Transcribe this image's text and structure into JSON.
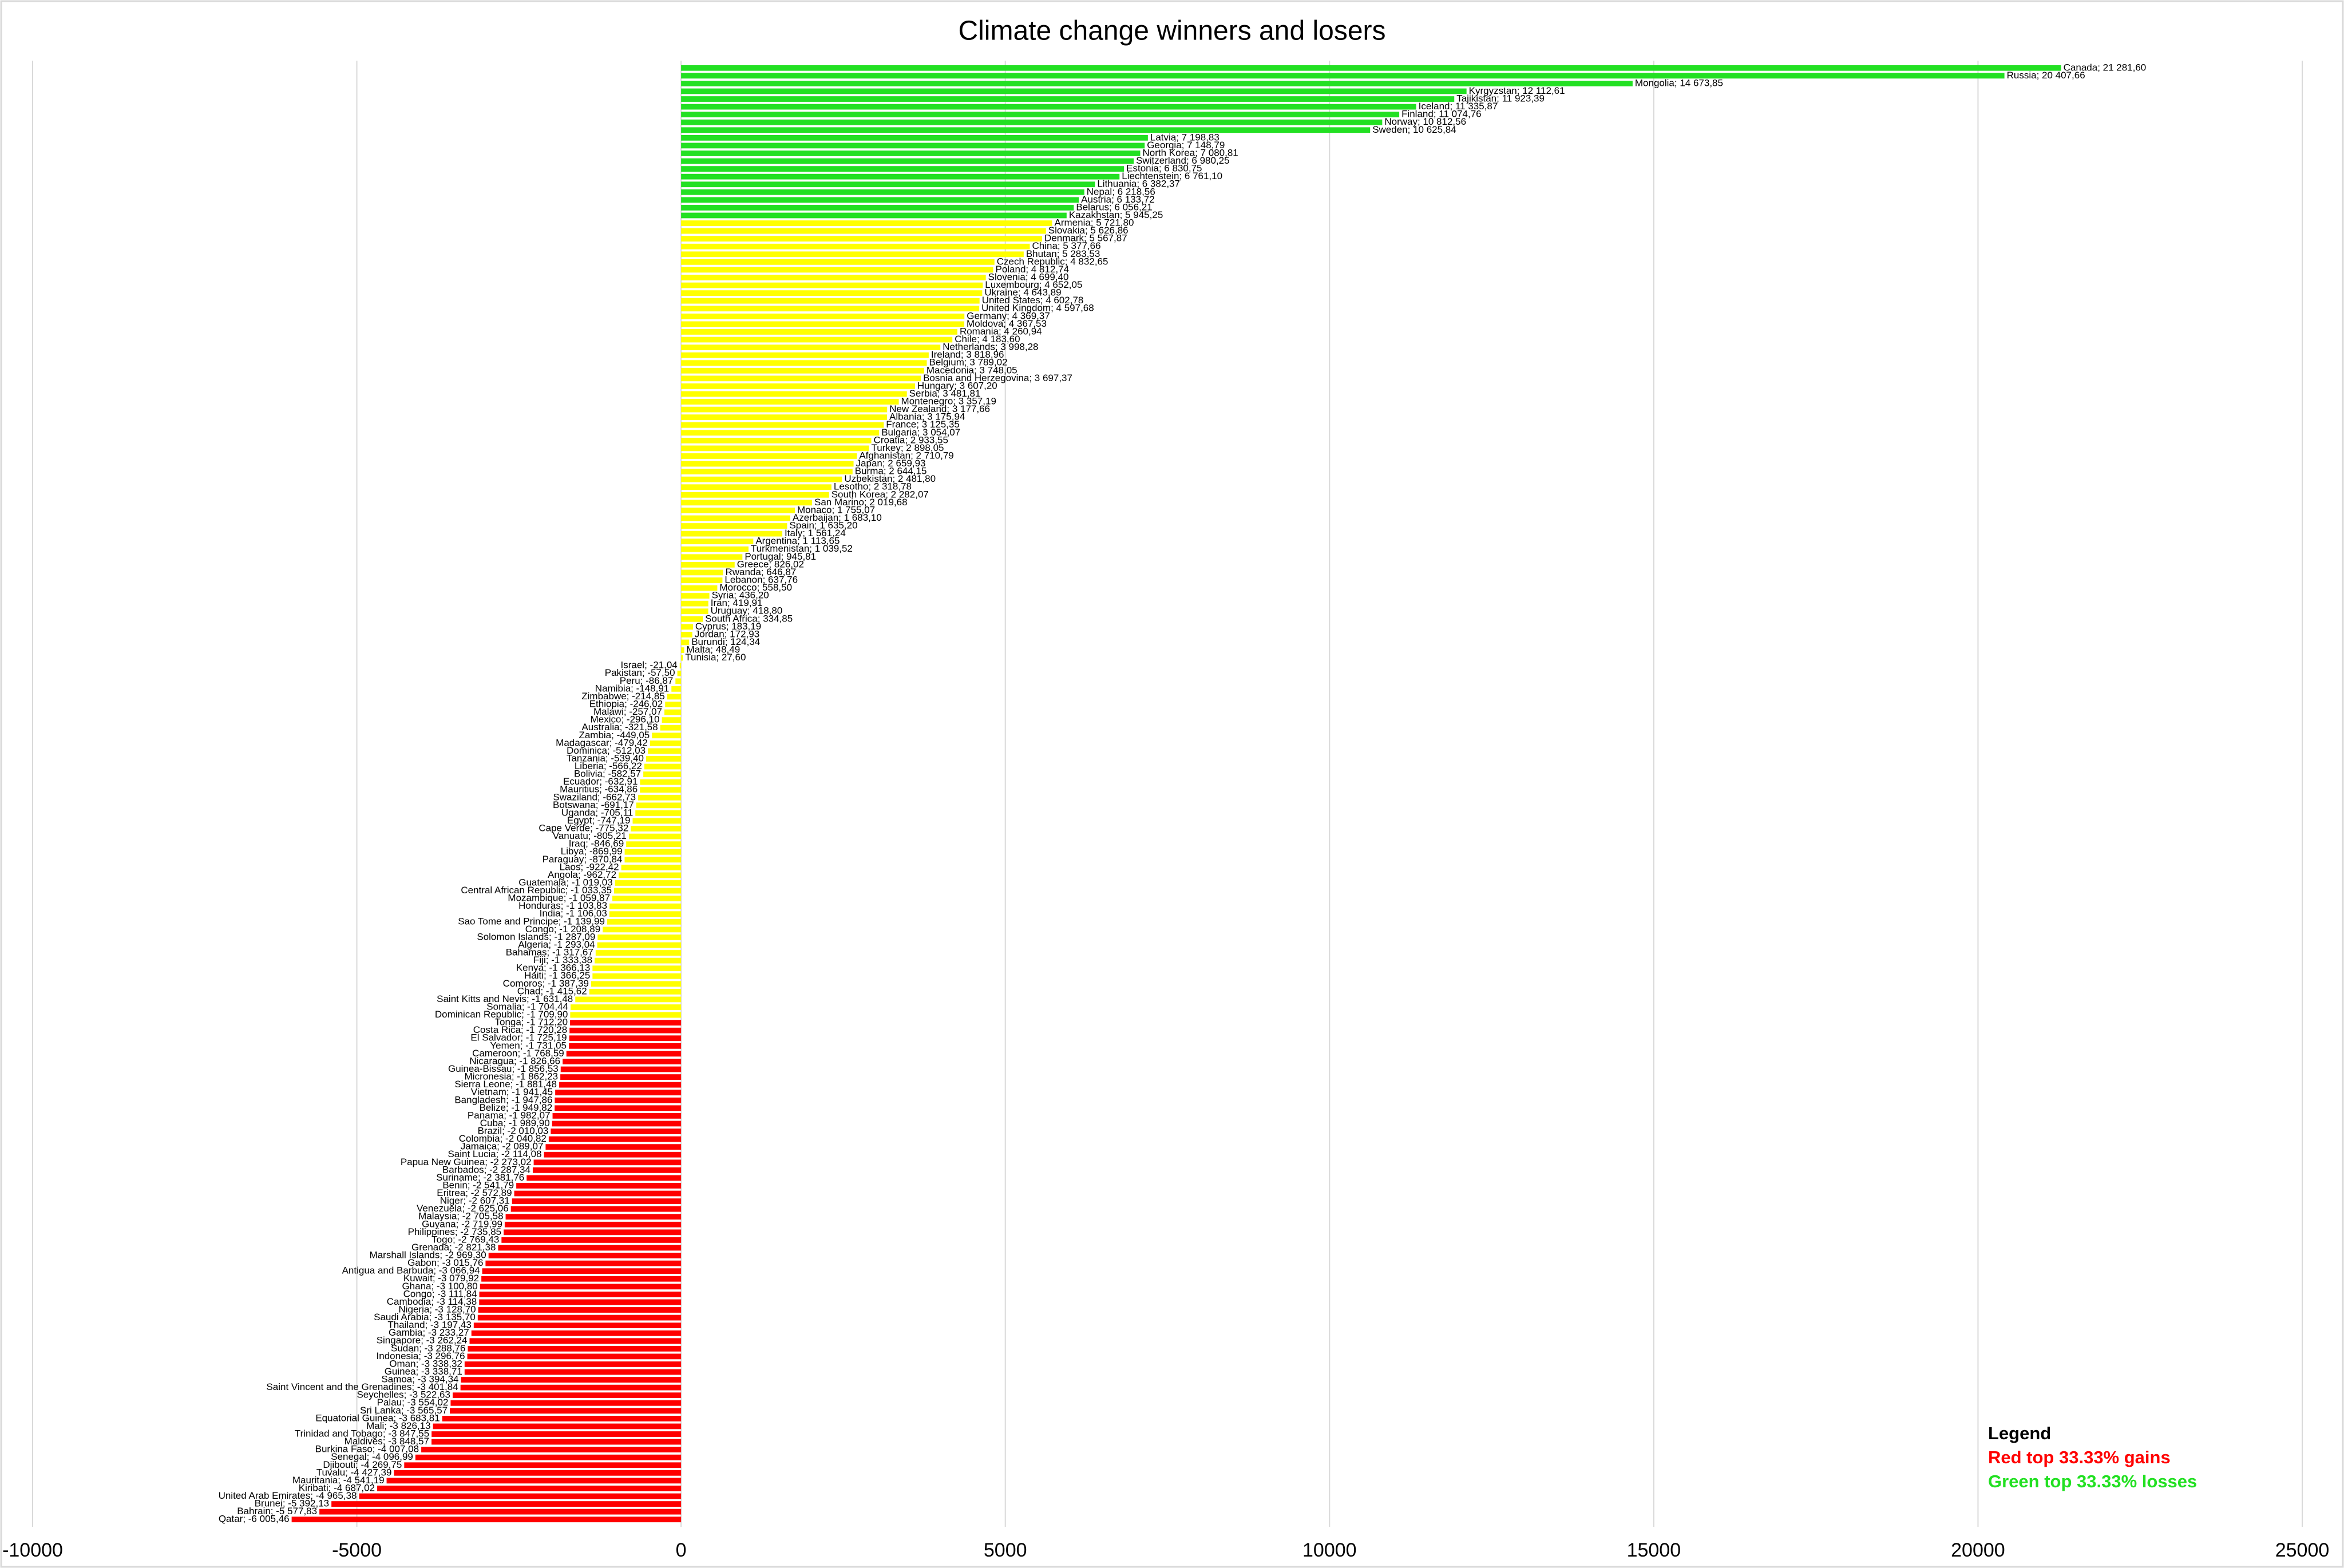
{
  "chart_data": {
    "type": "hbar",
    "title": "Climate change winners and losers",
    "xlim": [
      -10000,
      25000
    ],
    "xticks": [
      -10000,
      -5000,
      0,
      5000,
      10000,
      15000,
      20000,
      25000
    ],
    "grid": true,
    "legend": {
      "title": "Legend",
      "position": "bottom-right",
      "entries": [
        {
          "label": "Red top 33.33% gains",
          "color": "#ff0000"
        },
        {
          "label": "Green top 33.33% losses",
          "color": "#22e022"
        }
      ]
    },
    "series": [
      {
        "color": "#22e022",
        "values": [
          21281.6,
          20407.66,
          14673.85,
          12112.61,
          11923.39,
          11335.87,
          11074.76,
          10812.56,
          10625.84,
          7198.83,
          7148.79,
          7080.81,
          6980.25,
          6830.75,
          6761.1,
          6382.37,
          6218.56,
          6133.72,
          6056.21,
          5945.25
        ],
        "value_labels": [
          "Canada; 21 281,60",
          "Russia; 20 407,66",
          "Mongolia; 14 673,85",
          "Kyrgyzstan; 12 112,61",
          "Tajikistan; 11 923,39",
          "Iceland; 11 335,87",
          "Finland; 11 074,76",
          "Norway; 10 812,56",
          "Sweden; 10 625,84",
          "Latvia; 7 198,83",
          "Georgia; 7 148,79",
          "North Korea; 7 080,81",
          "Switzerland; 6 980,25",
          "Estonia; 6 830,75",
          "Liechtenstein; 6 761,10",
          "Lithuania; 6 382,37",
          "Nepal; 6 218,56",
          "Austria; 6 133,72",
          "Belarus; 6 056,21",
          "Kazakhstan; 5 945,25"
        ]
      },
      {
        "color": "#ffff00",
        "values": [
          5721.8,
          5626.86,
          5567.87,
          5377.66,
          5283.53,
          4832.65,
          4812.74,
          4699.4,
          4652.05,
          4643.89,
          4602.78,
          4597.68,
          4369.37,
          4367.53,
          4260.94,
          4183.6,
          3998.28,
          3818.96,
          3789.02,
          3748.05,
          3697.37,
          3607.2,
          3481.81,
          3357.19,
          3177.66,
          3175.94,
          3125.35,
          3054.07,
          2933.55,
          2898.05,
          2710.79,
          2659.93,
          2644.15,
          2481.8,
          2318.78,
          2282.07,
          2019.68,
          1755.07,
          1683.1,
          1635.2,
          1561.24,
          1113.65,
          1039.52,
          945.81,
          826.02,
          646.87,
          637.76,
          558.5,
          436.2,
          419.91,
          418.8,
          334.85,
          183.19,
          172.93,
          124.34,
          48.49,
          27.6,
          -21.04,
          -57.5,
          -86.87,
          -148.91,
          -214.85,
          -246.02,
          -257.07,
          -296.1,
          -321.58,
          -449.05,
          -479.42,
          -512.03,
          -539.4,
          -566.22,
          -582.57,
          -632.91,
          -634.86,
          -662.73,
          -691.17,
          -705.11,
          -747.19,
          -775.32,
          -805.21,
          -846.69,
          -869.99,
          -870.84,
          -922.42,
          -962.72,
          -1019.03,
          -1033.35,
          -1059.87,
          -1103.83,
          -1106.03,
          -1139.99,
          -1208.89,
          -1287.09,
          -1293.04,
          -1317.67,
          -1333.38,
          -1366.13,
          -1366.25,
          -1387.39,
          -1415.62,
          -1631.48,
          -1704.44,
          -1709.9
        ],
        "value_labels": [
          "Armenia; 5 721,80",
          "Slovakia; 5 626,86",
          "Denmark; 5 567,87",
          "China; 5 377,66",
          "Bhutan; 5 283,53",
          "Czech Republic; 4 832,65",
          "Poland; 4 812,74",
          "Slovenia; 4 699,40",
          "Luxembourg; 4 652,05",
          "Ukraine; 4 643,89",
          "United States; 4 602,78",
          "United Kingdom; 4 597,68",
          "Germany; 4 369,37",
          "Moldova; 4 367,53",
          "Romania; 4 260,94",
          "Chile; 4 183,60",
          "Netherlands; 3 998,28",
          "Ireland; 3 818,96",
          "Belgium; 3 789,02",
          "Macedonia; 3 748,05",
          "Bosnia and Herzegovina; 3 697,37",
          "Hungary; 3 607,20",
          "Serbia; 3 481,81",
          "Montenegro; 3 357,19",
          "New Zealand; 3 177,66",
          "Albania; 3 175,94",
          "France; 3 125,35",
          "Bulgaria; 3 054,07",
          "Croatia; 2 933,55",
          "Turkey; 2 898,05",
          "Afghanistan; 2 710,79",
          "Japan; 2 659,93",
          "Burma; 2 644,15",
          "Uzbekistan; 2 481,80",
          "Lesotho; 2 318,78",
          "South Korea; 2 282,07",
          "San Marino; 2 019,68",
          "Monaco; 1 755,07",
          "Azerbaijan; 1 683,10",
          "Spain; 1 635,20",
          "Italy; 1 561,24",
          "Argentina; 1 113,65",
          "Turkmenistan; 1 039,52",
          "Portugal; 945,81",
          "Greece; 826,02",
          "Rwanda; 646,87",
          "Lebanon; 637,76",
          "Morocco; 558,50",
          "Syria; 436,20",
          "Iran; 419,91",
          "Uruguay; 418,80",
          "South Africa; 334,85",
          "Cyprus; 183,19",
          "Jordan; 172,93",
          "Burundi; 124,34",
          "Malta; 48,49",
          "Tunisia; 27,60",
          "Israel; -21,04",
          "Pakistan; -57,50",
          "Peru; -86,87",
          "Namibia; -148,91",
          "Zimbabwe; -214,85",
          "Ethiopia; -246,02",
          "Malawi; -257,07",
          "Mexico; -296,10",
          "Australia; -321,58",
          "Zambia; -449,05",
          "Madagascar; -479,42",
          "Dominica; -512,03",
          "Tanzania; -539,40",
          "Liberia; -566,22",
          "Bolivia; -582,57",
          "Ecuador; -632,91",
          "Mauritius; -634,86",
          "Swaziland; -662,73",
          "Botswana; -691,17",
          "Uganda; -705,11",
          "Egypt; -747,19",
          "Cape Verde; -775,32",
          "Vanuatu; -805,21",
          "Iraq; -846,69",
          "Libya; -869,99",
          "Paraguay; -870,84",
          "Laos; -922,42",
          "Angola; -962,72",
          "Guatemala; -1 019,03",
          "Central African Republic; -1 033,35",
          "Mozambique; -1 059,87",
          "Honduras; -1 103,83",
          "India; -1 106,03",
          "Sao Tome and Principe; -1 139,99",
          "Congo; -1 208,89",
          "Solomon Islands; -1 287,09",
          "Algeria; -1 293,04",
          "Bahamas; -1 317,67",
          "Fiji; -1 333,38",
          "Kenya; -1 366,13",
          "Haiti; -1 366,25",
          "Comoros; -1 387,39",
          "Chad; -1 415,62",
          "Saint Kitts and Nevis; -1 631,48",
          "Somalia; -1 704,44",
          "Dominican Republic; -1 709,90"
        ]
      },
      {
        "color": "#ff0000",
        "values": [
          -1712.2,
          -1720.28,
          -1725.19,
          -1731.05,
          -1768.59,
          -1826.66,
          -1856.53,
          -1862.23,
          -1881.48,
          -1941.45,
          -1947.86,
          -1949.82,
          -1982.07,
          -1989.9,
          -2010.03,
          -2040.82,
          -2089.07,
          -2114.08,
          -2273.02,
          -2287.34,
          -2381.76,
          -2541.79,
          -2572.89,
          -2607.31,
          -2625.06,
          -2705.58,
          -2719.99,
          -2735.85,
          -2769.43,
          -2821.38,
          -2969.3,
          -3015.76,
          -3066.94,
          -3079.92,
          -3100.8,
          -3111.84,
          -3114.38,
          -3128.7,
          -3135.7,
          -3197.43,
          -3233.27,
          -3262.24,
          -3288.76,
          -3296.76,
          -3338.32,
          -3338.71,
          -3394.34,
          -3401.84,
          -3522.63,
          -3554.02,
          -3565.57,
          -3683.81,
          -3826.13,
          -3847.55,
          -3848.57,
          -4007.08,
          -4096.99,
          -4269.75,
          -4427.39,
          -4541.19,
          -4687.02,
          -4965.38,
          -5392.13,
          -5577.83,
          -6005.46
        ],
        "value_labels": [
          "Tonga; -1 712,20",
          "Costa Rica; -1 720,28",
          "El Salvador; -1 725,19",
          "Yemen; -1 731,05",
          "Cameroon; -1 768,59",
          "Nicaragua; -1 826,66",
          "Guinea-Bissau; -1 856,53",
          "Micronesia; -1 862,23",
          "Sierra Leone; -1 881,48",
          "Vietnam; -1 941,45",
          "Bangladesh; -1 947,86",
          "Belize; -1 949,82",
          "Panama; -1 982,07",
          "Cuba; -1 989,90",
          "Brazil; -2 010,03",
          "Colombia; -2 040,82",
          "Jamaica; -2 089,07",
          "Saint Lucia; -2 114,08",
          "Papua New Guinea; -2 273,02",
          "Barbados; -2 287,34",
          "Suriname; -2 381,76",
          "Benin; -2 541,79",
          "Eritrea; -2 572,89",
          "Niger; -2 607,31",
          "Venezuela; -2 625,06",
          "Malaysia; -2 705,58",
          "Guyana; -2 719,99",
          "Philippines; -2 735,85",
          "Togo; -2 769,43",
          "Grenada; -2 821,38",
          "Marshall Islands; -2 969,30",
          "Gabon; -3 015,76",
          "Antigua and Barbuda; -3 066,94",
          "Kuwait; -3 079,92",
          "Ghana; -3 100,80",
          "Congo; -3 111,84",
          "Cambodia; -3 114,38",
          "Nigeria; -3 128,70",
          "Saudi Arabia; -3 135,70",
          "Thailand; -3 197,43",
          "Gambia; -3 233,27",
          "Singapore; -3 262,24",
          "Sudan; -3 288,76",
          "Indonesia; -3 296,76",
          "Oman; -3 338,32",
          "Guinea; -3 338,71",
          "Samoa; -3 394,34",
          "Saint Vincent and the Grenadines; -3 401,84",
          "Seychelles; -3 522,63",
          "Palau; -3 554,02",
          "Sri Lanka; -3 565,57",
          "Equatorial Guinea; -3 683,81",
          "Mali; -3 826,13",
          "Trinidad and Tobago; -3 847,55",
          "Maldives; -3 848,57",
          "Burkina Faso; -4 007,08",
          "Senegal; -4 096,99",
          "Djibouti; -4 269,75",
          "Tuvalu; -4 427,39",
          "Mauritania; -4 541,19",
          "Kiribati; -4 687,02",
          "United Arab Emirates; -4 965,38",
          "Brunei; -5 392,13",
          "Bahrain; -5 577,83",
          "Qatar; -6 005,46"
        ]
      }
    ]
  }
}
